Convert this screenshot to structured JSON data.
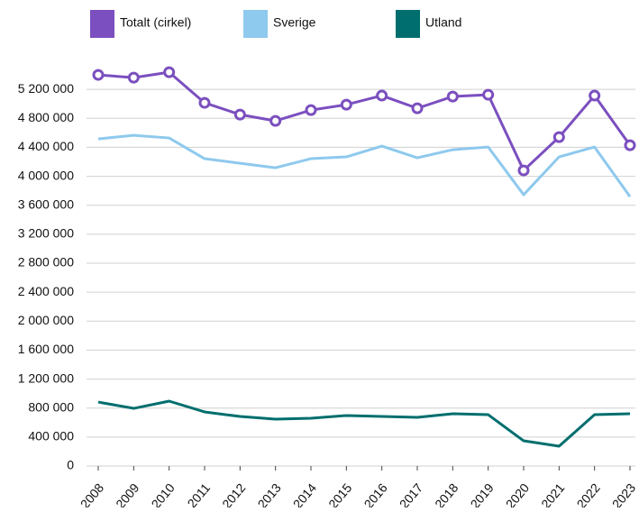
{
  "chart_data": {
    "type": "line",
    "categories": [
      "2008",
      "2009",
      "2010",
      "2011",
      "2012",
      "2013",
      "2014",
      "2015",
      "2016",
      "2017",
      "2018",
      "2019",
      "2020",
      "2021",
      "2022",
      "2023"
    ],
    "series": [
      {
        "name": "Totalt (cirkel)",
        "color": "#7b4fbf",
        "markers": true,
        "values": [
          5400000,
          5362000,
          5437000,
          5014000,
          4852000,
          4765000,
          4914000,
          4989000,
          5114000,
          4939000,
          5101000,
          5126000,
          4081000,
          4541000,
          5114000,
          4429000
        ]
      },
      {
        "name": "Sverige",
        "color": "#8ec9ee",
        "markers": false,
        "values": [
          4516000,
          4566000,
          4529000,
          4243000,
          4180000,
          4118000,
          4243000,
          4268000,
          4417000,
          4255000,
          4367000,
          4404000,
          3745000,
          4268000,
          4404000,
          3720000
        ]
      },
      {
        "name": "Utland",
        "color": "#006e6e",
        "markers": false,
        "values": [
          883000,
          796000,
          896000,
          747000,
          684000,
          647000,
          659000,
          697000,
          684000,
          672000,
          722000,
          709000,
          348000,
          274000,
          709000,
          722000
        ]
      }
    ],
    "ylim": [
      0,
      5600000
    ],
    "yticks": [
      0,
      {
        "value": 400000,
        "label": "400 000"
      },
      {
        "value": 800000,
        "label": "800 000"
      },
      {
        "value": 1200000,
        "label": "1 200 000"
      },
      {
        "value": 1600000,
        "label": "1 600 000"
      },
      {
        "value": 2000000,
        "label": "2 000 000"
      },
      {
        "value": 2400000,
        "label": "2 400 000"
      },
      {
        "value": 2800000,
        "label": "2 800 000"
      },
      {
        "value": 3200000,
        "label": "3 200 000"
      },
      {
        "value": 3600000,
        "label": "3 600 000"
      },
      {
        "value": 4000000,
        "label": "4 000 000"
      },
      {
        "value": 4400000,
        "label": "4 400 000"
      },
      {
        "value": 4800000,
        "label": "4 800 000"
      },
      {
        "value": 5200000,
        "label": "5 200 000"
      }
    ],
    "grid": true
  }
}
